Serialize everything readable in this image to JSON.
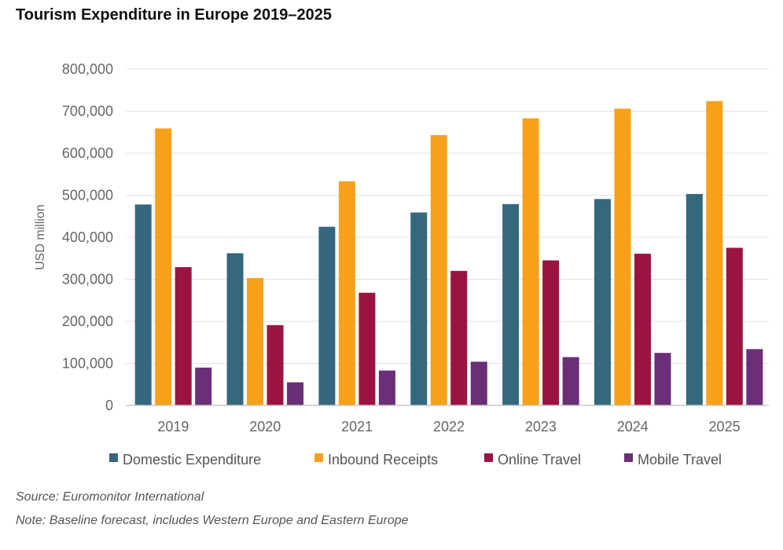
{
  "title": "Tourism Expenditure in Europe 2019–2025",
  "source": "Source: Euromonitor International",
  "note": "Note: Baseline forecast, includes Western Europe and Eastern Europe",
  "colors": {
    "domestic": "#35677f",
    "inbound": "#f7a11a",
    "online": "#9c1340",
    "mobile": "#6a2f77",
    "grid": "#e3e3e3",
    "axis": "#c8c8c8"
  },
  "chart_data": {
    "type": "bar",
    "title": "Tourism Expenditure in Europe 2019–2025",
    "xlabel": "",
    "ylabel": "USD million",
    "ylim": [
      0,
      800000
    ],
    "yticks": [
      0,
      100000,
      200000,
      300000,
      400000,
      500000,
      600000,
      700000,
      800000
    ],
    "ytick_labels": [
      "0",
      "100,000",
      "200,000",
      "300,000",
      "400,000",
      "500,000",
      "600,000",
      "700,000",
      "800,000"
    ],
    "grid": true,
    "legend_position": "bottom",
    "categories": [
      "2019",
      "2020",
      "2021",
      "2022",
      "2023",
      "2024",
      "2025"
    ],
    "series": [
      {
        "name": "Domestic Expenditure",
        "color": "#35677f",
        "values": [
          478000,
          362000,
          425000,
          459000,
          479000,
          491000,
          503000
        ]
      },
      {
        "name": "Inbound Receipts",
        "color": "#f7a11a",
        "values": [
          659000,
          303000,
          533000,
          643000,
          683000,
          706000,
          724000
        ]
      },
      {
        "name": "Online Travel",
        "color": "#9c1340",
        "values": [
          329000,
          191000,
          268000,
          320000,
          345000,
          361000,
          375000
        ]
      },
      {
        "name": "Mobile Travel",
        "color": "#6a2f77",
        "values": [
          90000,
          55000,
          83000,
          104000,
          115000,
          125000,
          134000
        ]
      }
    ]
  }
}
